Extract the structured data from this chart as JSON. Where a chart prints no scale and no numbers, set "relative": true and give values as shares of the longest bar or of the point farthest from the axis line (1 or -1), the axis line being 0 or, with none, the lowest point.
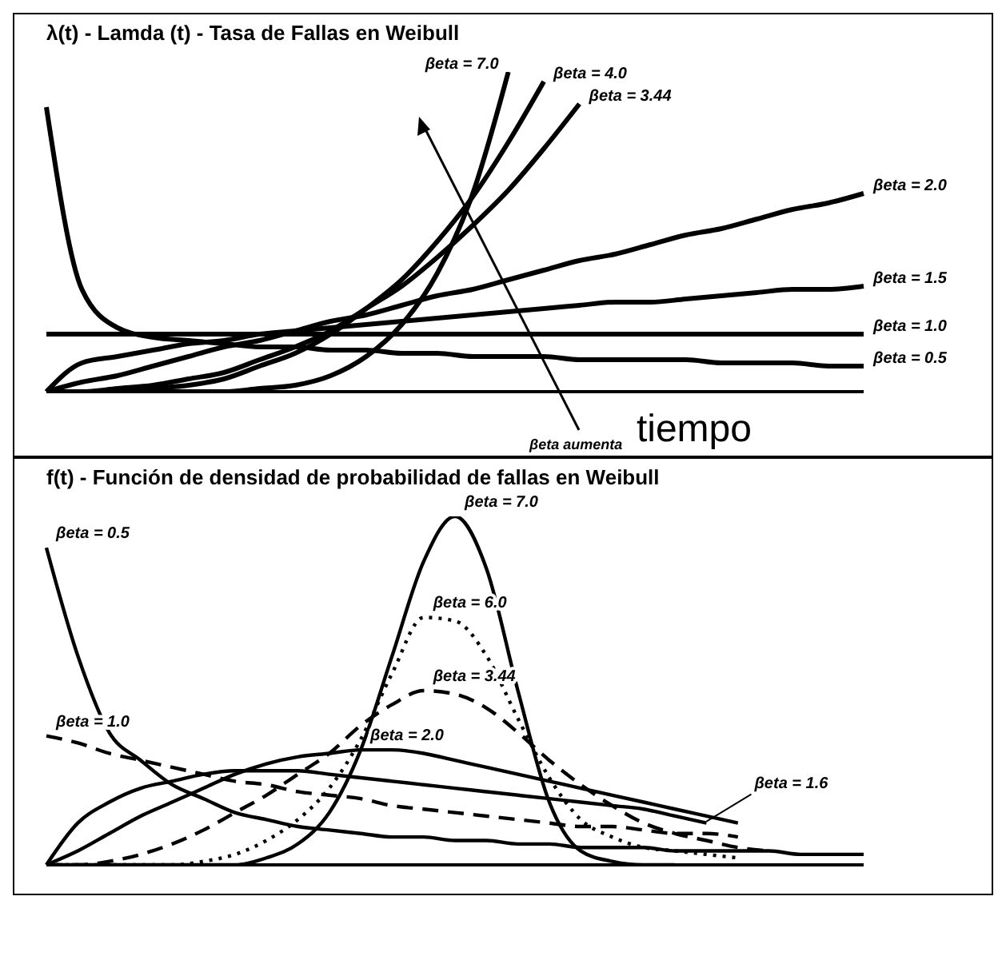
{
  "chart_data": [
    {
      "type": "line",
      "title": "λ(t)  -  Lamda (t) -  Tasa de Fallas en Weibull",
      "xlabel": "tiempo",
      "relative": true,
      "tick_labels": false,
      "marker": "none",
      "line_style": "solid",
      "annotations": [
        "βeta aumenta"
      ],
      "categories": [
        null,
        null,
        null,
        null,
        null,
        null,
        null,
        null,
        null,
        null,
        null,
        null,
        null,
        null,
        null,
        null,
        null,
        null,
        null,
        null,
        null,
        null,
        null,
        null
      ],
      "series": [
        {
          "name": "βeta = 0.5",
          "color": "#000000",
          "values": [
            0.89,
            0.32,
            0.2,
            0.17,
            0.16,
            0.15,
            0.14,
            0.14,
            0.13,
            0.13,
            0.12,
            0.12,
            0.11,
            0.11,
            0.11,
            0.1,
            0.1,
            0.1,
            0.1,
            0.09,
            0.09,
            0.09,
            0.08,
            0.08
          ]
        },
        {
          "name": "βeta = 1.0",
          "color": "#000000",
          "values": [
            0.18,
            0.18,
            0.18,
            0.18,
            0.18,
            0.18,
            0.18,
            0.18,
            0.18,
            0.18,
            0.18,
            0.18,
            0.18,
            0.18,
            0.18,
            0.18,
            0.18,
            0.18,
            0.18,
            0.18,
            0.18,
            0.18,
            0.18,
            0.18
          ]
        },
        {
          "name": "βeta = 1.5",
          "color": "#000000",
          "values": [
            0,
            0.09,
            0.11,
            0.13,
            0.15,
            0.16,
            0.18,
            0.19,
            0.2,
            0.21,
            0.22,
            0.23,
            0.24,
            0.25,
            0.26,
            0.27,
            0.28,
            0.28,
            0.29,
            0.3,
            0.31,
            0.32,
            0.32,
            0.33
          ]
        },
        {
          "name": "βeta = 2.0",
          "color": "#000000",
          "values": [
            0,
            0.03,
            0.05,
            0.08,
            0.11,
            0.14,
            0.16,
            0.19,
            0.22,
            0.24,
            0.27,
            0.3,
            0.32,
            0.35,
            0.38,
            0.41,
            0.43,
            0.46,
            0.49,
            0.51,
            0.54,
            0.57,
            0.59,
            0.62
          ]
        },
        {
          "name": "βeta = 3.44",
          "color": "#000000",
          "values": [
            0,
            0,
            0.01,
            0.02,
            0.04,
            0.06,
            0.1,
            0.14,
            0.19,
            0.26,
            0.33,
            0.42,
            0.52,
            0.63,
            0.76,
            0.9,
            null,
            null,
            null,
            null,
            null,
            null,
            null,
            null
          ]
        },
        {
          "name": "βeta = 4.0",
          "color": "#000000",
          "values": [
            0,
            0,
            0,
            0.01,
            0.02,
            0.04,
            0.08,
            0.12,
            0.18,
            0.26,
            0.35,
            0.47,
            0.61,
            0.78,
            0.97,
            null,
            null,
            null,
            null,
            null,
            null,
            null,
            null,
            null
          ]
        },
        {
          "name": "βeta = 7.0",
          "color": "#000000",
          "values": [
            0,
            0,
            0,
            0,
            0,
            0,
            0.01,
            0.02,
            0.05,
            0.11,
            0.21,
            0.37,
            0.62,
            1,
            null,
            null,
            null,
            null,
            null,
            null,
            null,
            null,
            null,
            null
          ]
        }
      ]
    },
    {
      "type": "line",
      "title": "f(t)  -  Función de densidad de probabilidad de fallas en Weibull",
      "relative": true,
      "tick_labels": false,
      "marker": "none",
      "categories": [
        null,
        null,
        null,
        null,
        null,
        null,
        null,
        null,
        null,
        null,
        null,
        null,
        null,
        null,
        null,
        null,
        null,
        null,
        null,
        null,
        null,
        null,
        null,
        null,
        null,
        null,
        null
      ],
      "series": [
        {
          "name": "βeta = 0.5",
          "color": "#000000",
          "line_style": "solid",
          "values": [
            0.91,
            0.6,
            0.38,
            0.3,
            0.23,
            0.19,
            0.15,
            0.13,
            0.11,
            0.1,
            0.09,
            0.08,
            0.08,
            0.07,
            0.07,
            0.06,
            0.06,
            0.05,
            0.05,
            0.05,
            0.04,
            0.04,
            0.04,
            0.04,
            0.03,
            0.03,
            0.03
          ]
        },
        {
          "name": "βeta = 1.0",
          "color": "#000000",
          "line_style": "dashed",
          "values": [
            0.37,
            0.35,
            0.32,
            0.3,
            0.28,
            0.26,
            0.24,
            0.23,
            0.21,
            0.2,
            0.19,
            0.17,
            0.16,
            0.15,
            0.14,
            0.13,
            0.12,
            0.11,
            0.11,
            0.1,
            0.09,
            0.09,
            0.08,
            null,
            null,
            null,
            null
          ]
        },
        {
          "name": "βeta = 1.6",
          "color": "#000000",
          "line_style": "solid",
          "values": [
            0,
            0.12,
            0.18,
            0.22,
            0.24,
            0.26,
            0.27,
            0.27,
            0.27,
            0.26,
            0.25,
            0.24,
            0.23,
            0.22,
            0.21,
            0.2,
            0.19,
            0.18,
            0.17,
            0.16,
            0.14,
            0.12,
            null,
            null,
            null,
            null,
            null
          ]
        },
        {
          "name": "βeta = 2.0",
          "color": "#000000",
          "line_style": "solid",
          "values": [
            0,
            0.04,
            0.09,
            0.14,
            0.18,
            0.22,
            0.26,
            0.29,
            0.31,
            0.32,
            0.33,
            0.33,
            0.32,
            0.3,
            0.28,
            0.26,
            0.24,
            0.22,
            0.2,
            0.18,
            0.16,
            0.14,
            0.12,
            null,
            null,
            null,
            null
          ]
        },
        {
          "name": "βeta = 3.44",
          "color": "#000000",
          "line_style": "dashed",
          "values": [
            0,
            0,
            0.01,
            0.03,
            0.06,
            0.1,
            0.15,
            0.2,
            0.26,
            0.32,
            0.4,
            0.46,
            0.5,
            0.49,
            0.45,
            0.38,
            0.3,
            0.23,
            0.17,
            0.12,
            0.09,
            0.07,
            0.05,
            0.04,
            null,
            null,
            null
          ]
        },
        {
          "name": "βeta = 6.0",
          "color": "#000000",
          "line_style": "dotted",
          "values": [
            0,
            0,
            0,
            0,
            0,
            0.01,
            0.03,
            0.07,
            0.13,
            0.22,
            0.36,
            0.55,
            0.71,
            0.7,
            0.6,
            0.42,
            0.25,
            0.13,
            0.08,
            0.05,
            0.04,
            0.03,
            0.02,
            null,
            null,
            null,
            null
          ]
        },
        {
          "name": "βeta = 7.0",
          "color": "#000000",
          "line_style": "solid",
          "values": [
            0,
            0,
            0,
            0,
            0,
            0,
            0,
            0.02,
            0.06,
            0.15,
            0.33,
            0.6,
            0.87,
            1,
            0.85,
            0.5,
            0.18,
            0.04,
            0.01,
            0,
            0,
            null,
            null,
            null,
            null,
            null,
            null
          ]
        }
      ]
    }
  ]
}
